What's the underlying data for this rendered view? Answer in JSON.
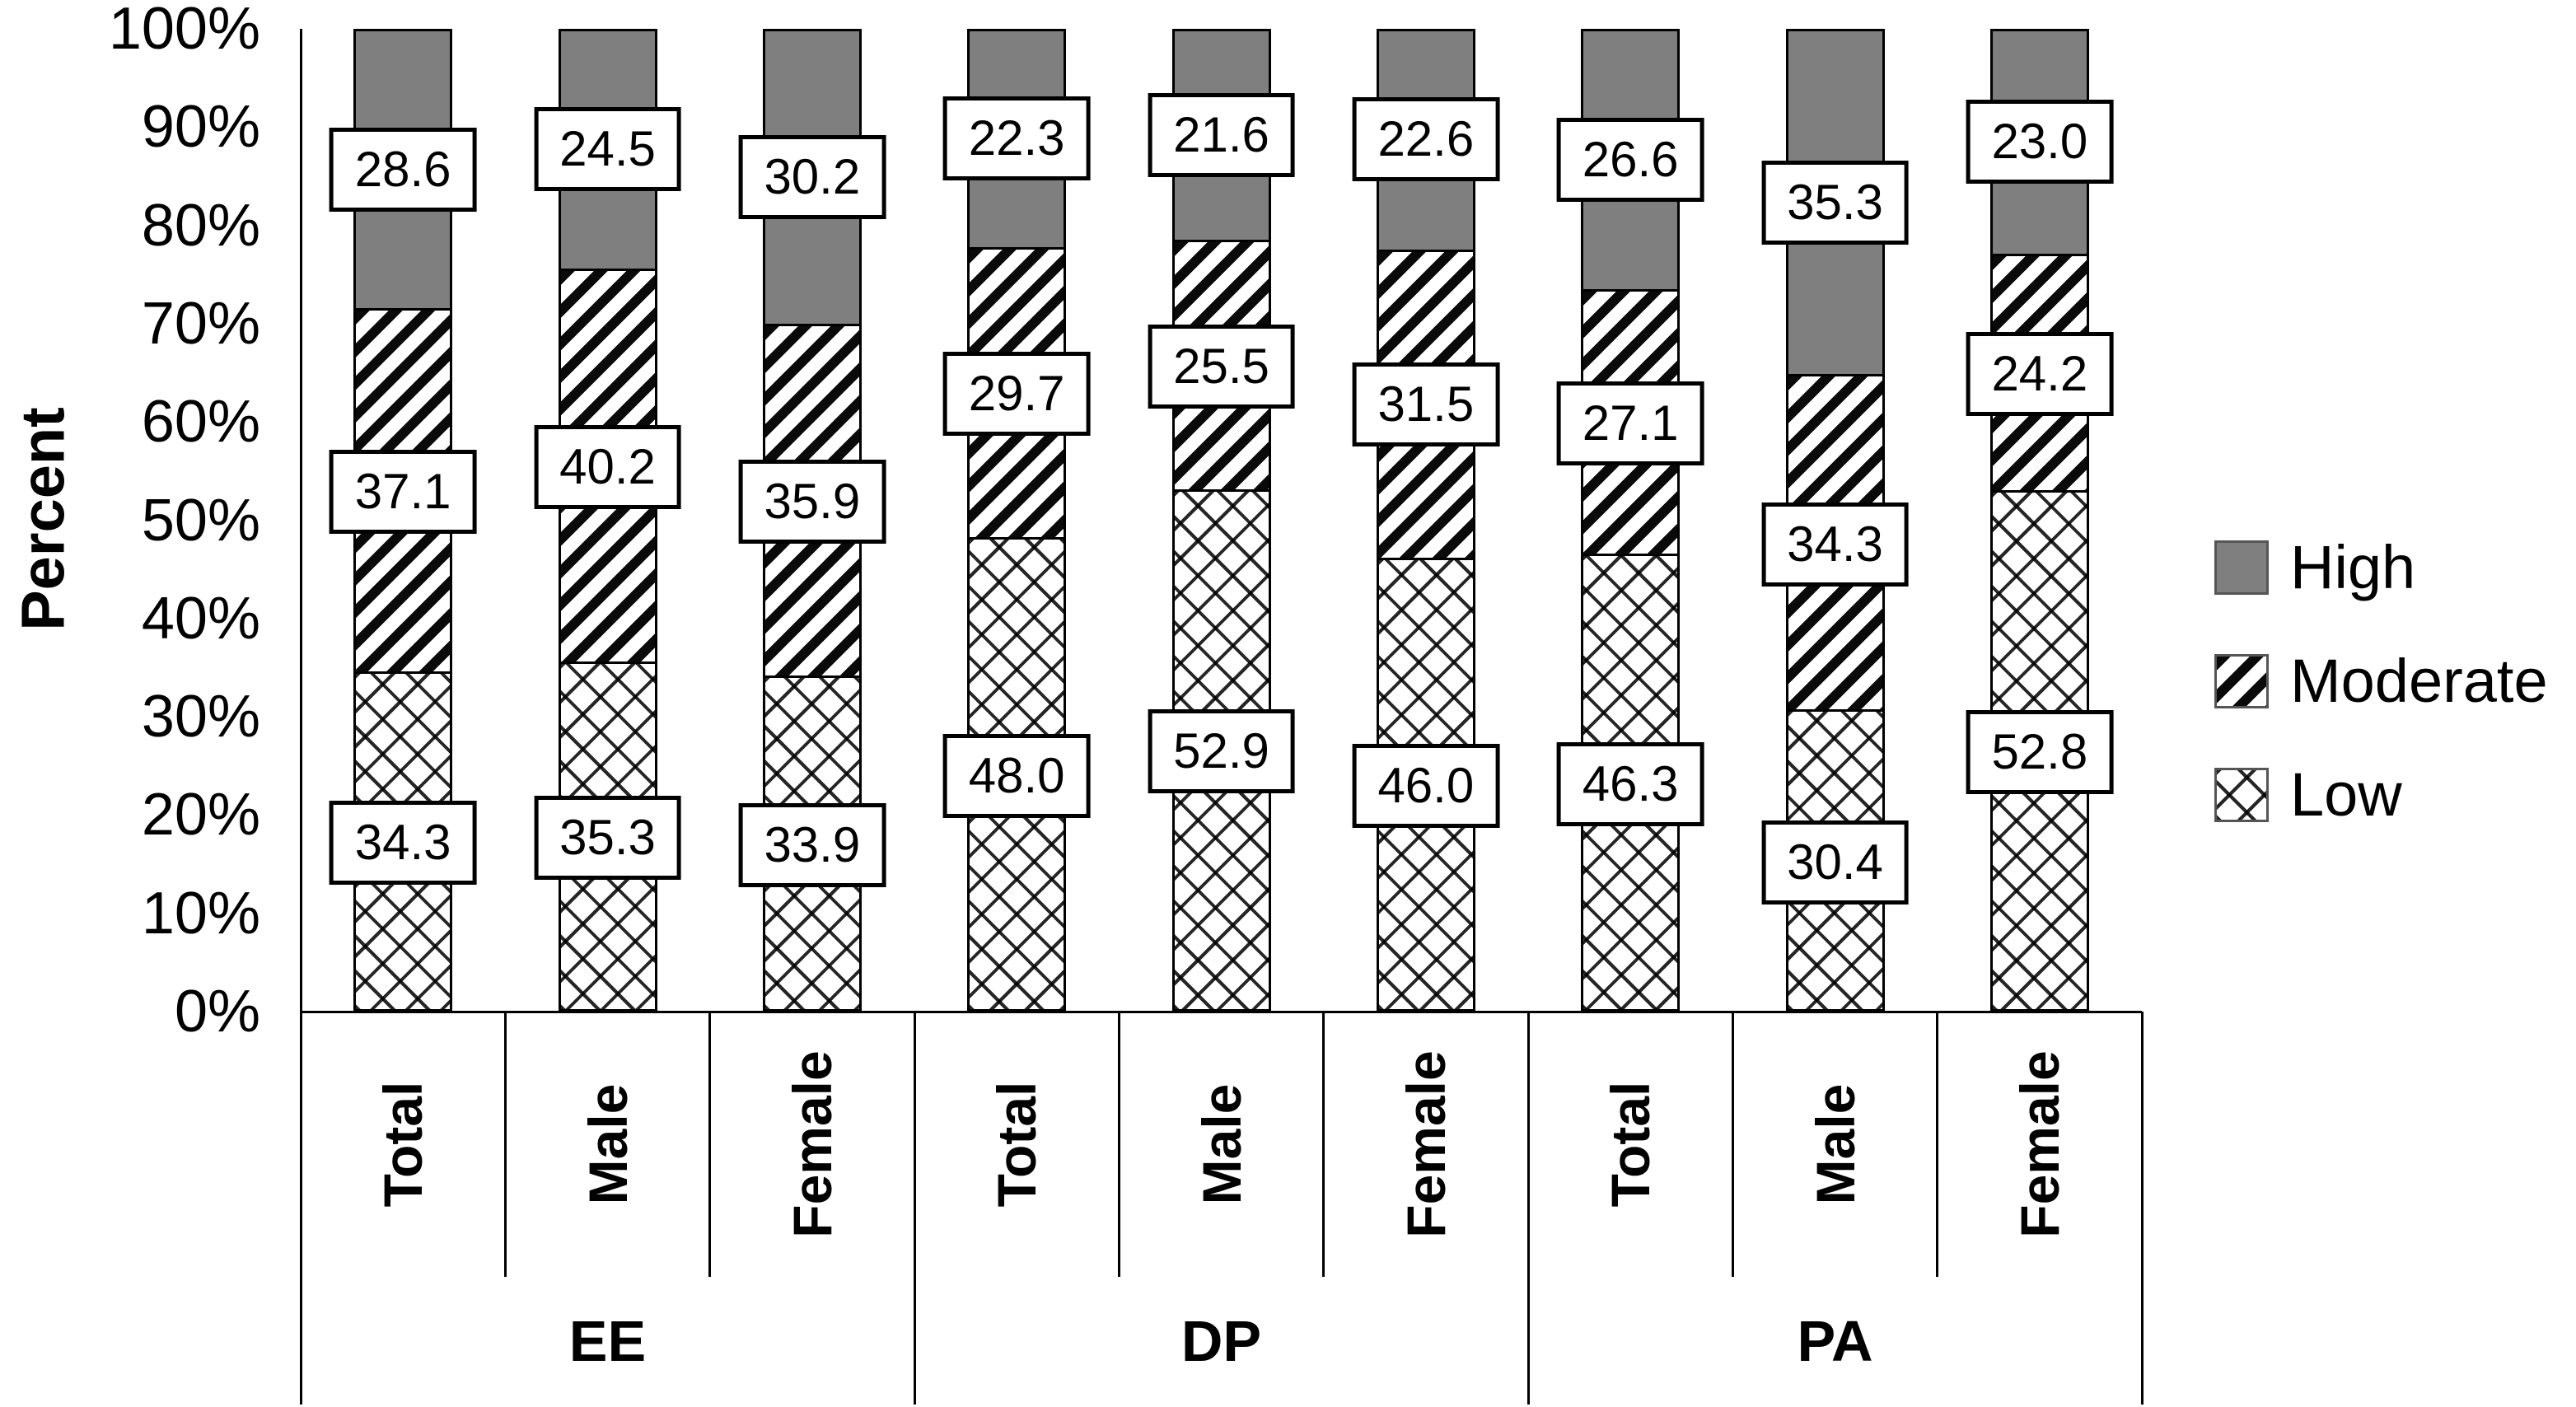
{
  "chart_data": {
    "type": "bar",
    "variant": "stacked-percent-bar",
    "title": "",
    "ylabel": "Percent",
    "ylim": [
      0,
      100
    ],
    "yticks": [
      "0%",
      "10%",
      "20%",
      "30%",
      "40%",
      "50%",
      "60%",
      "70%",
      "80%",
      "90%",
      "100%"
    ],
    "grid": false,
    "legend_position": "right",
    "series_order": [
      "Low",
      "Moderate",
      "High"
    ],
    "legend": [
      {
        "key": "high",
        "label": "High",
        "pattern": "solid-gray",
        "color": "#7f7f7f"
      },
      {
        "key": "moderate",
        "label": "Moderate",
        "pattern": "diagonal-hatch",
        "color": "#000000"
      },
      {
        "key": "low",
        "label": "Low",
        "pattern": "crosshatch",
        "color": "#000000"
      }
    ],
    "groups": [
      {
        "label": "EE",
        "bars": [
          {
            "label": "Total",
            "Low": 34.3,
            "Moderate": 37.1,
            "High": 28.6
          },
          {
            "label": "Male",
            "Low": 35.3,
            "Moderate": 40.2,
            "High": 24.5
          },
          {
            "label": "Female",
            "Low": 33.9,
            "Moderate": 35.9,
            "High": 30.2
          }
        ]
      },
      {
        "label": "DP",
        "bars": [
          {
            "label": "Total",
            "Low": 48.0,
            "Moderate": 29.7,
            "High": 22.3
          },
          {
            "label": "Male",
            "Low": 52.9,
            "Moderate": 25.5,
            "High": 21.6
          },
          {
            "label": "Female",
            "Low": 46.0,
            "Moderate": 31.5,
            "High": 22.6
          }
        ]
      },
      {
        "label": "PA",
        "bars": [
          {
            "label": "Total",
            "Low": 46.3,
            "Moderate": 27.1,
            "High": 26.6
          },
          {
            "label": "Male",
            "Low": 30.4,
            "Moderate": 34.3,
            "High": 35.3
          },
          {
            "label": "Female",
            "Low": 52.8,
            "Moderate": 24.2,
            "High": 23.0
          }
        ]
      }
    ]
  }
}
